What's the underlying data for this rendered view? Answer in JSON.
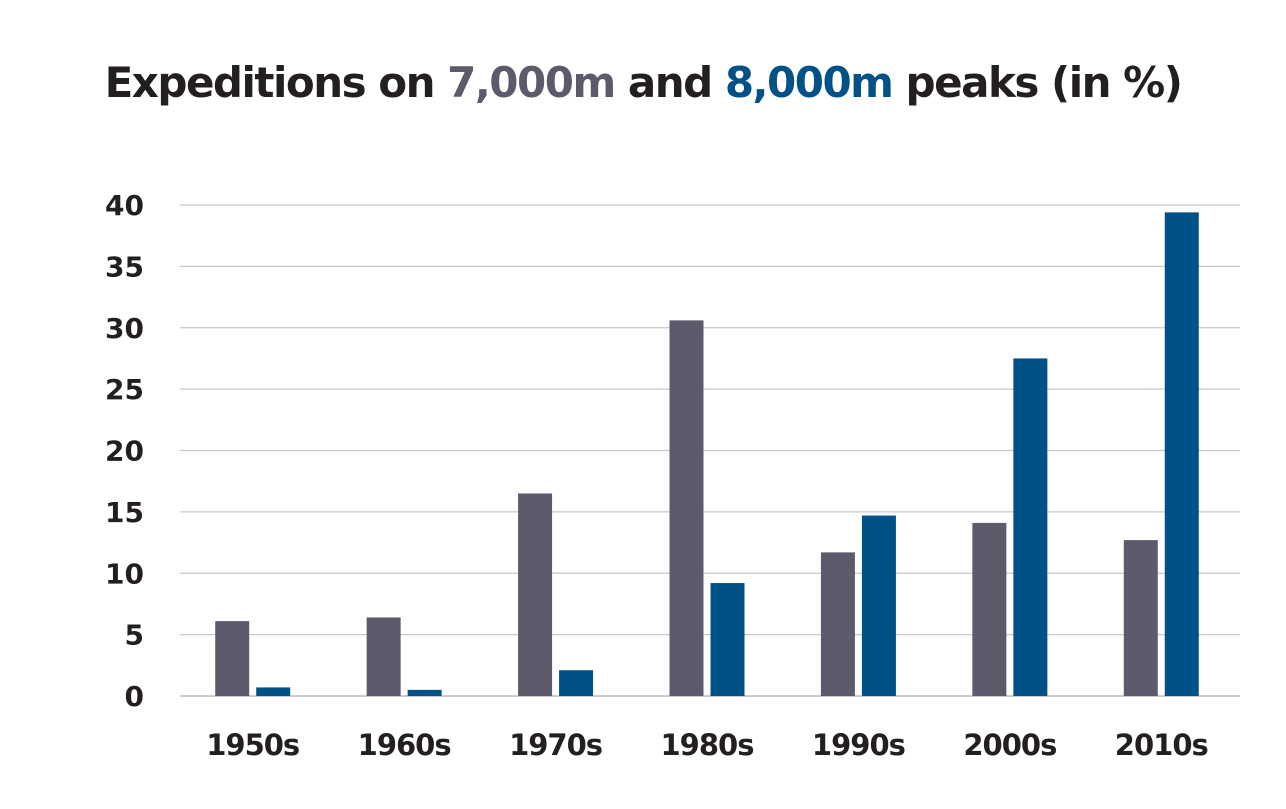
{
  "title": {
    "part1": "Expeditions on ",
    "part2": "7,000m",
    "part3": " and ",
    "part4": "8,000m",
    "part5": " peaks (in %)"
  },
  "chart_data": {
    "type": "bar",
    "categories": [
      "1950s",
      "1960s",
      "1970s",
      "1980s",
      "1990s",
      "2000s",
      "2010s"
    ],
    "series": [
      {
        "values": [
          6.1,
          6.4,
          16.5,
          30.6,
          11.7,
          14.1,
          12.7
        ],
        "color": "#5c5a6b"
      },
      {
        "values": [
          0.7,
          0.5,
          2.1,
          9.2,
          14.7,
          27.5,
          39.4
        ],
        "color": "#005187"
      }
    ],
    "yticks": [
      "0",
      "5",
      "10",
      "15",
      "20",
      "25",
      "30",
      "35",
      "40"
    ],
    "ylim": [
      0,
      40
    ],
    "grid": true,
    "legend": "none"
  }
}
